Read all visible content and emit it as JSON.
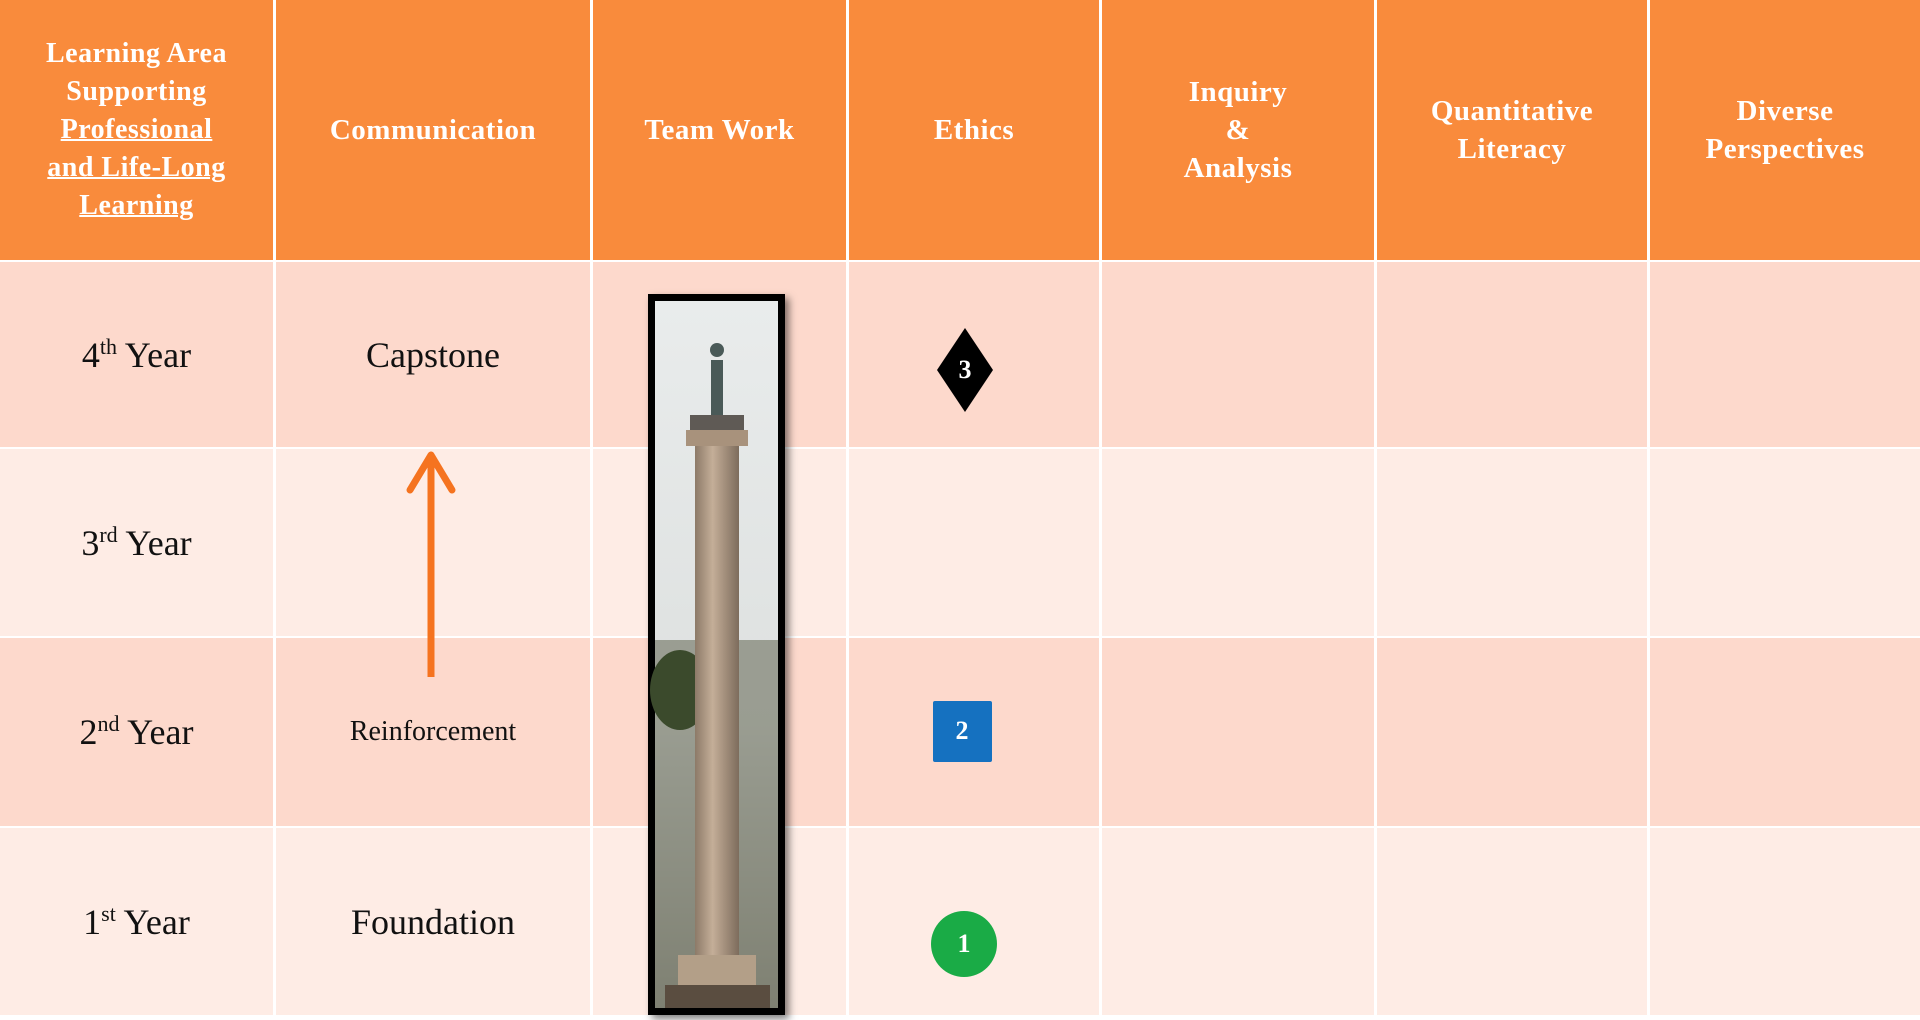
{
  "header": {
    "columns": [
      {
        "lines": [
          "Learning Area",
          "Supporting"
        ],
        "underlined_lines": [
          "Professional",
          "and Life-Long",
          "Learning"
        ]
      },
      {
        "lines": [
          "Communication"
        ]
      },
      {
        "lines": [
          "Team Work"
        ]
      },
      {
        "lines": [
          "Ethics"
        ]
      },
      {
        "lines": [
          "Inquiry",
          "&",
          "Analysis"
        ]
      },
      {
        "lines": [
          "Quantitative",
          "Literacy"
        ]
      },
      {
        "lines": [
          "Diverse",
          "Perspectives"
        ]
      }
    ]
  },
  "rows": [
    {
      "year": {
        "number": "4",
        "suffix": "th",
        "word": "Year"
      },
      "communication": "Capstone",
      "ethics_badge": "3"
    },
    {
      "year": {
        "number": "3",
        "suffix": "rd",
        "word": "Year"
      }
    },
    {
      "year": {
        "number": "2",
        "suffix": "nd",
        "word": "Year"
      },
      "communication": "Reinforcement",
      "ethics_badge": "2"
    },
    {
      "year": {
        "number": "1",
        "suffix": "st",
        "word": "Year"
      },
      "communication": "Foundation",
      "ethics_badge": "1"
    }
  ]
}
